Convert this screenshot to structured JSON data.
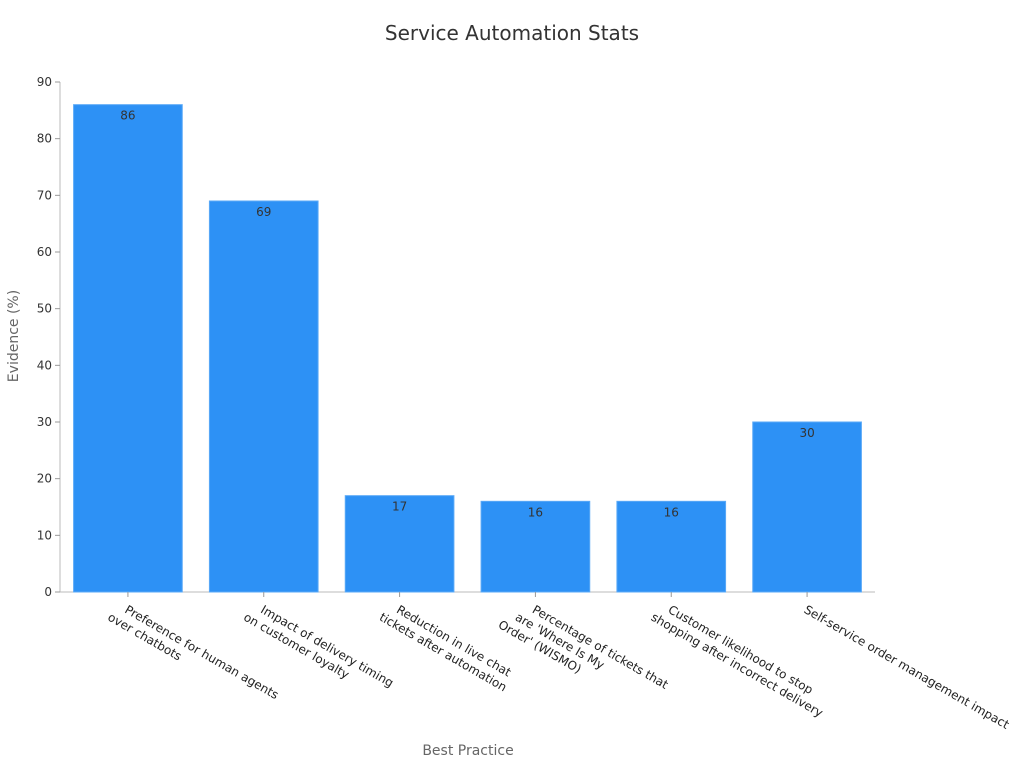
{
  "chart_data": {
    "type": "bar",
    "title": "Service Automation Stats",
    "xlabel": "Best Practice",
    "ylabel": "Evidence (%)",
    "ylim": [
      0,
      90
    ],
    "yticks": [
      0,
      10,
      20,
      30,
      40,
      50,
      60,
      70,
      80,
      90
    ],
    "categories": [
      [
        "Preference for human agents",
        "over chatbots"
      ],
      [
        "Impact of delivery timing",
        "on customer loyalty"
      ],
      [
        "Reduction in live chat",
        "tickets after automation"
      ],
      [
        "Percentage of tickets that",
        "are 'Where Is My",
        "Order' (WISMO)"
      ],
      [
        "Customer likelihood to stop",
        "shopping after incorrect delivery"
      ],
      [
        "Self-service order management impact"
      ]
    ],
    "values": [
      86,
      69,
      17,
      16,
      16,
      30
    ],
    "bar_color": "#2d91f5",
    "grid": false,
    "legend": "none"
  }
}
